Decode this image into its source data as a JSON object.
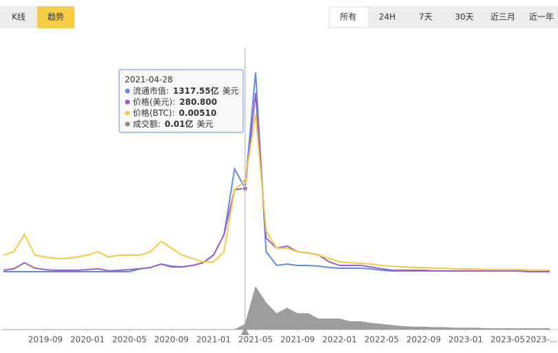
{
  "tabs": [
    "K线",
    "趋势"
  ],
  "ranges": [
    "所有",
    "24H",
    "7天",
    "30天",
    "近三月",
    "近一年"
  ],
  "chart_data": {
    "type": "line",
    "x": [
      "2019-05",
      "2019-06",
      "2019-07",
      "2019-08",
      "2019-09",
      "2019-10",
      "2019-11",
      "2019-12",
      "2020-01",
      "2020-02",
      "2020-03",
      "2020-04",
      "2020-05",
      "2020-06",
      "2020-07",
      "2020-08",
      "2020-09",
      "2020-10",
      "2020-11",
      "2020-12",
      "2021-01",
      "2021-02",
      "2021-03",
      "2021-04",
      "2021-05",
      "2021-06",
      "2021-07",
      "2021-08",
      "2021-09",
      "2021-10",
      "2021-11",
      "2021-12",
      "2022-01",
      "2022-02",
      "2022-03",
      "2022-04",
      "2022-05",
      "2022-06",
      "2022-07",
      "2022-08",
      "2022-09",
      "2022-10",
      "2022-11",
      "2022-12",
      "2023-01",
      "2023-02",
      "2023-03",
      "2023-04",
      "2023-05",
      "2023-06",
      "2023-07",
      "2023-08",
      "2023-09"
    ],
    "xticks": [
      "2019-09",
      "2020-01",
      "2020-05",
      "2020-09",
      "2021-01",
      "2021-05",
      "2021-09",
      "2022-01",
      "2022-05",
      "2022-09",
      "2023-01",
      "2023-05",
      {
        "value": "2023-09",
        "label": "2023-..."
      }
    ],
    "series": [
      {
        "name": "流通市值:",
        "color": "#5b8ce6",
        "type": "line",
        "ylim": [
          0,
          3500
        ],
        "values": [
          11,
          11,
          11,
          11,
          11,
          11,
          11,
          11,
          11,
          11,
          11,
          11,
          11,
          54,
          75,
          129,
          97,
          86,
          108,
          151,
          269,
          592,
          1615,
          1317.55,
          3123,
          323,
          108,
          129,
          108,
          108,
          97,
          75,
          65,
          65,
          65,
          54,
          32,
          22,
          22,
          22,
          22,
          22,
          22,
          22,
          22,
          22,
          22,
          22,
          22,
          22,
          11,
          11,
          11
        ]
      },
      {
        "name": "价格(美元):",
        "color": "#9d5cc9",
        "type": "line",
        "ylim": [
          0,
          750
        ],
        "values": [
          7,
          12,
          32,
          14,
          9,
          7,
          7,
          7,
          9,
          12,
          5,
          7,
          9,
          12,
          16,
          28,
          18,
          18,
          23,
          32,
          58,
          127,
          277,
          280.8,
          600,
          115,
          81,
          88,
          69,
          65,
          58,
          35,
          23,
          23,
          23,
          18,
          12,
          7,
          7,
          7,
          7,
          5,
          5,
          5,
          5,
          5,
          5,
          5,
          5,
          5,
          2.3,
          2.3,
          2.3
        ]
      },
      {
        "name": "价格(BTC):",
        "color": "#f5c842",
        "type": "line",
        "ylim": [
          0,
          0.0125
        ],
        "values": [
          0.00096,
          0.00115,
          0.00212,
          0.00096,
          0.00085,
          0.00077,
          0.00077,
          0.00085,
          0.00096,
          0.00115,
          0.00085,
          0.00096,
          0.00096,
          0.00096,
          0.00115,
          0.00173,
          0.00135,
          0.00096,
          0.00077,
          0.00058,
          0.00058,
          0.00115,
          0.00462,
          0.0051,
          0.00885,
          0.00231,
          0.00135,
          0.00135,
          0.00115,
          0.00108,
          0.00096,
          0.00077,
          0.00058,
          0.00054,
          0.0005,
          0.00046,
          0.00038,
          0.00035,
          0.00031,
          0.00027,
          0.00027,
          0.00023,
          0.00023,
          0.00019,
          0.00019,
          0.00019,
          0.00015,
          0.00015,
          0.00015,
          0.00015,
          0.00012,
          0.00012,
          0.00012
        ]
      },
      {
        "name": "成交额:",
        "color": "#8c8c8c",
        "type": "area",
        "ylim": [
          0,
          0.1
        ],
        "values": [
          0,
          0,
          0,
          0,
          0,
          0,
          0,
          0,
          0,
          0,
          0,
          0,
          0,
          0,
          0,
          0,
          0,
          0,
          0,
          0,
          0,
          0,
          0,
          0.01,
          0.08,
          0.05,
          0.03,
          0.04,
          0.03,
          0.03,
          0.02,
          0.02,
          0.02,
          0.015,
          0.015,
          0.012,
          0.01,
          0.008,
          0.006,
          0.005,
          0.005,
          0.004,
          0.004,
          0.003,
          0.003,
          0.003,
          0.002,
          0.002,
          0.002,
          0.002,
          0.002,
          0.002,
          0.002
        ]
      }
    ],
    "cursor": "2021-04",
    "tooltip": {
      "date": "2021-04-28",
      "items": [
        {
          "value": "1317.55亿",
          "unit": "美元"
        },
        {
          "value": "280.800"
        },
        {
          "value": "0.00510"
        },
        {
          "value": "0.01亿",
          "unit": "美元"
        }
      ]
    }
  }
}
